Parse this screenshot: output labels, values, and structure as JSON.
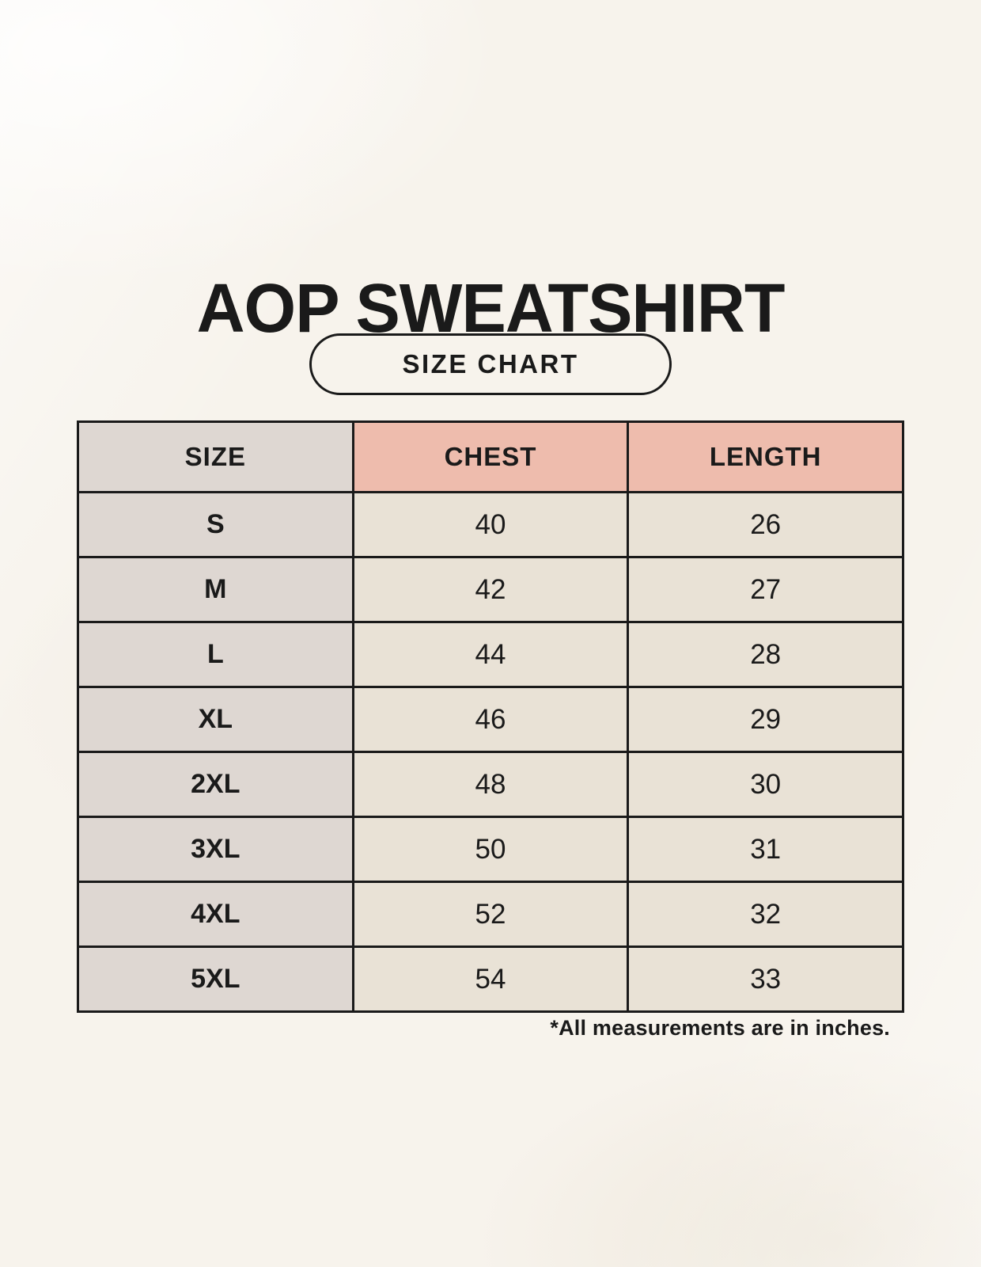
{
  "page": {
    "title": "AOP SWEATSHIRT",
    "badge_label": "SIZE CHART",
    "footnote": "*All measurements are in inches."
  },
  "colors": {
    "background": "#f7f3ec",
    "table_border": "#1a1a1a",
    "size_column_bg": "#ded7d2",
    "header_accent_bg": "#eebcad",
    "data_cell_bg": "#e9e2d6",
    "text": "#1a1a1a"
  },
  "chart_data": {
    "type": "table",
    "title": "AOP SWEATSHIRT",
    "subtitle": "SIZE CHART",
    "columns": [
      "SIZE",
      "CHEST",
      "LENGTH"
    ],
    "rows": [
      [
        "S",
        "40",
        "26"
      ],
      [
        "M",
        "42",
        "27"
      ],
      [
        "L",
        "44",
        "28"
      ],
      [
        "XL",
        "46",
        "29"
      ],
      [
        "2XL",
        "48",
        "30"
      ],
      [
        "3XL",
        "50",
        "31"
      ],
      [
        "4XL",
        "52",
        "32"
      ],
      [
        "5XL",
        "54",
        "33"
      ]
    ],
    "units_note": "*All measurements are in inches."
  }
}
